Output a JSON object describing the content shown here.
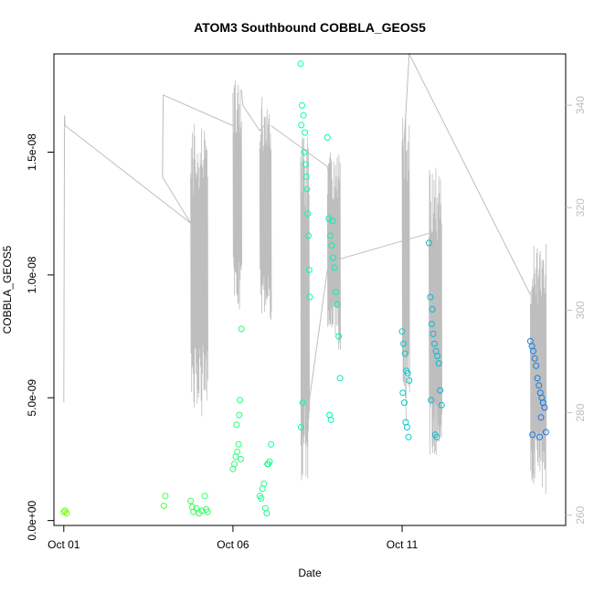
{
  "chart_data": {
    "type": "scatter",
    "title": "ATOM3 Southbound COBBLA_GEOS5",
    "xlabel": "Date",
    "ylabel": "COBBLA_GEOS5",
    "x_ticks": [
      "Oct 01",
      "Oct 06",
      "Oct 11"
    ],
    "y_ticks": [
      "0.0e+00",
      "5.0e-09",
      "1.0e-08",
      "1.5e-08"
    ],
    "y_tick_values": [
      0,
      5e-09,
      1e-08,
      1.5e-08
    ],
    "y2_ticks": [
      "260",
      "280",
      "300",
      "320",
      "340"
    ],
    "y2_tick_values": [
      260,
      280,
      300,
      320,
      340
    ],
    "xlim": [
      "2016-09-30T17:00",
      "2016-10-15T20:00"
    ],
    "ylim": [
      -2e-10,
      1.9e-08
    ],
    "y2lim": [
      258,
      350
    ],
    "grid": false,
    "colors": {
      "ramp_start": "#73ff00",
      "ramp_mid": "#00ffb0",
      "ramp_end": "#1a73e8",
      "secondary_line": "#bebebe",
      "axis": "#000000",
      "axis2_text": "#bebebe"
    },
    "points": [
      [
        "2016-10-01T00:00",
        3.5e-10
      ],
      [
        "2016-10-01T01:00",
        4e-10
      ],
      [
        "2016-10-01T02:00",
        3e-10
      ],
      [
        "2016-10-03T23:00",
        6e-10
      ],
      [
        "2016-10-04T00:00",
        1e-09
      ],
      [
        "2016-10-04T18:00",
        8e-10
      ],
      [
        "2016-10-04T20:00",
        3.5e-10
      ],
      [
        "2016-10-04T22:00",
        5e-10
      ],
      [
        "2016-10-05T00:00",
        3e-10
      ],
      [
        "2016-10-05T02:00",
        4e-10
      ],
      [
        "2016-10-05T04:00",
        1e-09
      ],
      [
        "2016-10-04T19:00",
        5.5e-10
      ],
      [
        "2016-10-05T05:00",
        4.5e-10
      ],
      [
        "2016-10-05T06:00",
        3.5e-10
      ],
      [
        "2016-10-06T00:00",
        2.1e-09
      ],
      [
        "2016-10-06T01:00",
        2.3e-09
      ],
      [
        "2016-10-06T02:00",
        2.6e-09
      ],
      [
        "2016-10-06T03:00",
        2.8e-09
      ],
      [
        "2016-10-06T04:00",
        3.1e-09
      ],
      [
        "2016-10-06T02:30",
        3.9e-09
      ],
      [
        "2016-10-06T04:30",
        4.3e-09
      ],
      [
        "2016-10-06T05:00",
        4.9e-09
      ],
      [
        "2016-10-06T06:00",
        7.8e-09
      ],
      [
        "2016-10-06T05:30",
        2.5e-09
      ],
      [
        "2016-10-06T19:00",
        1e-09
      ],
      [
        "2016-10-06T20:00",
        9e-10
      ],
      [
        "2016-10-06T21:00",
        1.3e-09
      ],
      [
        "2016-10-06T22:00",
        1.5e-09
      ],
      [
        "2016-10-06T23:00",
        5e-10
      ],
      [
        "2016-10-07T00:00",
        3e-10
      ],
      [
        "2016-10-07T01:00",
        2.3e-09
      ],
      [
        "2016-10-07T02:00",
        2.4e-09
      ],
      [
        "2016-10-07T03:00",
        3.1e-09
      ],
      [
        "2016-10-07T00:30",
        2.3e-09
      ],
      [
        "2016-10-08T00:00",
        1.86e-08
      ],
      [
        "2016-10-08T01:00",
        1.69e-08
      ],
      [
        "2016-10-08T02:00",
        1.65e-08
      ],
      [
        "2016-10-08T00:30",
        1.61e-08
      ],
      [
        "2016-10-08T03:00",
        1.58e-08
      ],
      [
        "2016-10-08T02:30",
        1.5e-08
      ],
      [
        "2016-10-08T03:30",
        1.45e-08
      ],
      [
        "2016-10-08T04:00",
        1.4e-08
      ],
      [
        "2016-10-08T04:30",
        1.35e-08
      ],
      [
        "2016-10-08T05:00",
        1.25e-08
      ],
      [
        "2016-10-08T05:30",
        1.16e-08
      ],
      [
        "2016-10-08T06:00",
        1.02e-08
      ],
      [
        "2016-10-08T06:30",
        9.1e-09
      ],
      [
        "2016-10-08T01:30",
        4.8e-09
      ],
      [
        "2016-10-08T00:15",
        3.8e-09
      ],
      [
        "2016-10-08T19:00",
        1.56e-08
      ],
      [
        "2016-10-08T20:00",
        1.23e-08
      ],
      [
        "2016-10-08T21:00",
        1.16e-08
      ],
      [
        "2016-10-08T22:00",
        1.12e-08
      ],
      [
        "2016-10-08T23:00",
        1.07e-08
      ],
      [
        "2016-10-09T00:00",
        1.03e-08
      ],
      [
        "2016-10-09T01:00",
        9.3e-09
      ],
      [
        "2016-10-09T02:00",
        8.8e-09
      ],
      [
        "2016-10-09T03:00",
        7.5e-09
      ],
      [
        "2016-10-09T04:00",
        5.8e-09
      ],
      [
        "2016-10-08T20:30",
        4.3e-09
      ],
      [
        "2016-10-08T21:30",
        4.1e-09
      ],
      [
        "2016-10-08T22:30",
        1.22e-08
      ],
      [
        "2016-10-11T00:00",
        7.7e-09
      ],
      [
        "2016-10-11T01:00",
        7.2e-09
      ],
      [
        "2016-10-11T02:00",
        6.8e-09
      ],
      [
        "2016-10-11T03:00",
        6.1e-09
      ],
      [
        "2016-10-11T04:00",
        6e-09
      ],
      [
        "2016-10-11T05:00",
        5.7e-09
      ],
      [
        "2016-10-11T00:30",
        5.2e-09
      ],
      [
        "2016-10-11T01:30",
        4.8e-09
      ],
      [
        "2016-10-11T02:30",
        4e-09
      ],
      [
        "2016-10-11T03:30",
        3.8e-09
      ],
      [
        "2016-10-11T04:30",
        3.4e-09
      ],
      [
        "2016-10-11T19:00",
        1.13e-08
      ],
      [
        "2016-10-11T20:00",
        9.1e-09
      ],
      [
        "2016-10-11T21:00",
        8e-09
      ],
      [
        "2016-10-11T22:00",
        7.6e-09
      ],
      [
        "2016-10-11T23:00",
        7.2e-09
      ],
      [
        "2016-10-12T00:00",
        6.9e-09
      ],
      [
        "2016-10-12T01:00",
        6.7e-09
      ],
      [
        "2016-10-12T02:00",
        6.4e-09
      ],
      [
        "2016-10-12T03:00",
        5.3e-09
      ],
      [
        "2016-10-12T04:00",
        4.7e-09
      ],
      [
        "2016-10-11T20:30",
        4.9e-09
      ],
      [
        "2016-10-11T23:30",
        3.5e-09
      ],
      [
        "2016-10-12T00:30",
        3.4e-09
      ],
      [
        "2016-10-11T21:30",
        8.6e-09
      ],
      [
        "2016-10-14T19:00",
        7.3e-09
      ],
      [
        "2016-10-14T20:00",
        7.1e-09
      ],
      [
        "2016-10-14T21:00",
        6.9e-09
      ],
      [
        "2016-10-14T22:00",
        6.6e-09
      ],
      [
        "2016-10-14T23:00",
        6.3e-09
      ],
      [
        "2016-10-15T00:00",
        5.8e-09
      ],
      [
        "2016-10-15T01:00",
        5.5e-09
      ],
      [
        "2016-10-15T02:00",
        5.2e-09
      ],
      [
        "2016-10-15T03:00",
        5e-09
      ],
      [
        "2016-10-15T04:00",
        4.8e-09
      ],
      [
        "2016-10-15T05:00",
        4.6e-09
      ],
      [
        "2016-10-15T06:00",
        3.6e-09
      ],
      [
        "2016-10-14T20:30",
        3.5e-09
      ],
      [
        "2016-10-15T01:30",
        3.4e-09
      ],
      [
        "2016-10-15T02:30",
        4.2e-09
      ]
    ],
    "line_bursts": [
      {
        "start": "2016-10-04T18:00",
        "end": "2016-10-05T06:00",
        "low": 279,
        "high": 337
      },
      {
        "start": "2016-10-06T00:00",
        "end": "2016-10-06T06:00",
        "low": 300,
        "high": 345
      },
      {
        "start": "2016-10-06T19:00",
        "end": "2016-10-07T03:00",
        "low": 298,
        "high": 342
      },
      {
        "start": "2016-10-08T00:00",
        "end": "2016-10-08T06:00",
        "low": 265,
        "high": 335
      },
      {
        "start": "2016-10-08T19:00",
        "end": "2016-10-09T04:00",
        "low": 292,
        "high": 331
      },
      {
        "start": "2016-10-11T00:00",
        "end": "2016-10-11T05:00",
        "low": 278,
        "high": 338
      },
      {
        "start": "2016-10-11T19:00",
        "end": "2016-10-12T04:00",
        "low": 268,
        "high": 328
      },
      {
        "start": "2016-10-14T19:00",
        "end": "2016-10-15T06:00",
        "low": 264,
        "high": 313
      }
    ],
    "line_connectors": [
      [
        [
          "2016-10-01T00:00",
          282
        ],
        [
          "2016-10-01T00:30",
          338
        ],
        [
          "2016-10-01T01:00",
          336
        ],
        [
          "2016-10-04T18:00",
          317
        ]
      ],
      [
        [
          "2016-10-04T18:00",
          317
        ],
        [
          "2016-10-03T22:00",
          326
        ],
        [
          "2016-10-03T22:30",
          342
        ],
        [
          "2016-10-06T00:00",
          336
        ]
      ],
      [
        [
          "2016-10-06T06:00",
          343
        ],
        [
          "2016-10-06T07:00",
          340
        ],
        [
          "2016-10-06T19:00",
          335
        ],
        [
          "2016-10-06T22:00",
          336
        ]
      ],
      [
        [
          "2016-10-07T03:00",
          336
        ],
        [
          "2016-10-08T19:00",
          328
        ],
        [
          "2016-10-09T04:00",
          310
        ]
      ],
      [
        [
          "2016-10-08T06:00",
          282
        ],
        [
          "2016-10-08T19:00",
          308
        ],
        [
          "2016-10-09T04:00",
          310
        ],
        [
          "2016-10-11T19:00",
          315
        ]
      ],
      [
        [
          "2016-10-11T00:00",
          326
        ],
        [
          "2016-10-11T05:00",
          350
        ],
        [
          "2016-10-14T19:00",
          303
        ]
      ]
    ]
  }
}
